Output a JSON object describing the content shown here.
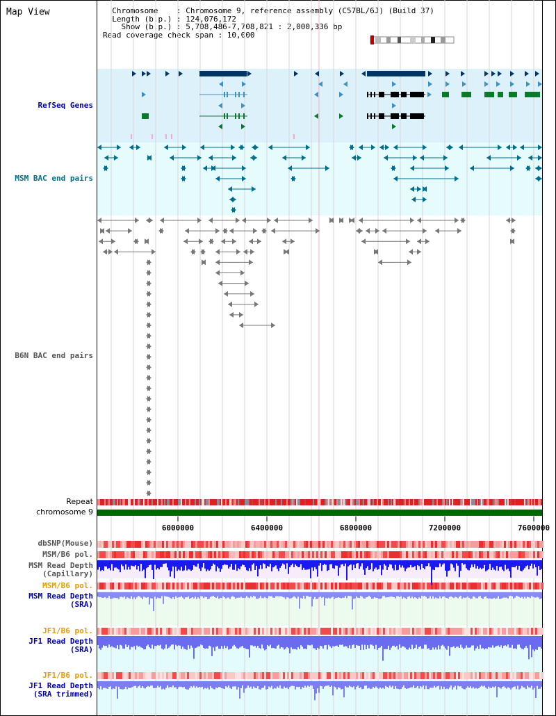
{
  "header": {
    "title": "Map View",
    "info_lines": [
      "  Chromosome    : Chromosome 9, reference assembly (C57BL/6J) (Build 37)",
      "  Length (b.p.) : 124,076,172",
      "    Show (b.p.) : 5,708,486-7,708,821 : 2,000,336 bp",
      "Read coverage check span : 10,000"
    ]
  },
  "tracks": {
    "refseq": "RefSeq Genes",
    "msm_bac": "MSM BAC end pairs",
    "b6n_bac": "B6N BAC end pairs",
    "repeat": "Repeat",
    "chromosome": "chromosome 9",
    "dbsnp": "dbSNP(Mouse)",
    "msm_b6_pol_1": "MSM/B6 pol.",
    "msm_depth_cap": "MSM Read Depth\n(Capillary)",
    "msm_b6_pol_2": "MSM/B6 pol.",
    "msm_depth_sra": "MSM Read Depth\n(SRA)",
    "jf1_b6_pol_1": "JF1/B6 pol.",
    "jf1_depth_sra": "JF1 Read Depth\n(SRA)",
    "jf1_b6_pol_2": "JF1/B6 pol.",
    "jf1_depth_trim": "JF1 Read Depth\n(SRA trimmed)"
  },
  "axis": {
    "ticks": [
      "6000000",
      "6400000",
      "6800000",
      "7200000",
      "7600000"
    ]
  },
  "colors": {
    "refseq_bg": "#ddf1fb",
    "msm_bg": "#e6fbfb",
    "label_blue": "#0000aa",
    "label_teal": "#006e8c",
    "label_orange": "#e89a00",
    "label_gray": "#555555",
    "gene_dark": "#003366",
    "gene_mid": "#3f8fbf",
    "gene_green": "#0a7a2a",
    "chrom_green": "#006600"
  }
}
